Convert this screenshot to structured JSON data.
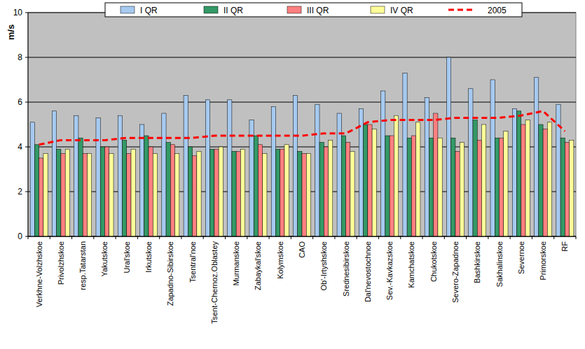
{
  "chart_data": {
    "type": "bar",
    "y_label": "m/s",
    "categories": [
      "Verkhne-Volzhskoe",
      "Privolzhskoe",
      "resp.Tatarstan",
      "Yakutskoe",
      "Ural'skoe",
      "Irkutskoe",
      "Zapadno-Sibirskoe",
      "Tsentral'noe",
      "Tsent-Chernoz.Oblastey",
      "Murmanskoe",
      "Zabaykal'skoe",
      "Kolymskoe",
      "CAO",
      "Ob'-Irtyshskoe",
      "Srednesibirskoe",
      "Dal'nevostochnoe",
      "Sev.-Kavkazskoe",
      "Kamchatskoe",
      "Chukotskoe",
      "Severo-Zapadnoe",
      "Bashkirskoe",
      "Sakhalinskoe",
      "Severnoe",
      "Primorskoe",
      "RF"
    ],
    "series": [
      {
        "name": "I QR",
        "color": "#a6caf0",
        "values": [
          5.1,
          5.6,
          5.4,
          5.3,
          5.4,
          5.0,
          5.5,
          6.3,
          6.1,
          6.1,
          5.2,
          5.8,
          6.3,
          5.9,
          5.5,
          5.7,
          6.5,
          7.3,
          6.2,
          8.0,
          6.6,
          7.0,
          5.7,
          7.1,
          5.9
        ]
      },
      {
        "name": "II QR",
        "color": "#339966",
        "values": [
          4.1,
          3.9,
          4.4,
          4.0,
          4.3,
          4.5,
          4.2,
          4.0,
          3.9,
          3.8,
          4.5,
          3.9,
          3.8,
          4.2,
          4.5,
          5.0,
          4.5,
          4.4,
          4.4,
          4.4,
          5.2,
          4.4,
          5.6,
          5.0,
          4.4
        ]
      },
      {
        "name": "III QR",
        "color": "#ff8080",
        "values": [
          3.5,
          3.7,
          3.7,
          4.0,
          3.7,
          4.0,
          4.1,
          3.6,
          3.9,
          3.8,
          4.1,
          3.9,
          3.7,
          4.0,
          4.2,
          5.0,
          4.5,
          4.5,
          5.5,
          3.8,
          4.3,
          4.4,
          5.0,
          4.8,
          4.2
        ]
      },
      {
        "name": "IV QR",
        "color": "#ffff99",
        "values": [
          3.7,
          3.9,
          3.7,
          3.7,
          3.9,
          3.7,
          3.7,
          3.8,
          4.0,
          3.9,
          3.7,
          4.1,
          3.7,
          4.3,
          3.8,
          4.8,
          5.4,
          5.1,
          4.4,
          4.2,
          5.0,
          4.7,
          5.2,
          5.1,
          4.3
        ]
      },
      {
        "name": "2005",
        "color": "#ff0000",
        "type": "line",
        "line_style": "dashed",
        "values": [
          4.1,
          4.3,
          4.3,
          4.3,
          4.4,
          4.4,
          4.4,
          4.4,
          4.5,
          4.5,
          4.5,
          4.5,
          4.5,
          4.6,
          4.6,
          5.1,
          5.2,
          5.2,
          5.2,
          5.3,
          5.3,
          5.3,
          5.4,
          5.6,
          4.7
        ]
      }
    ],
    "ylim": [
      0,
      10
    ],
    "yticks": [
      0,
      2,
      4,
      6,
      8,
      10
    ],
    "grid": true,
    "legend": "top"
  }
}
